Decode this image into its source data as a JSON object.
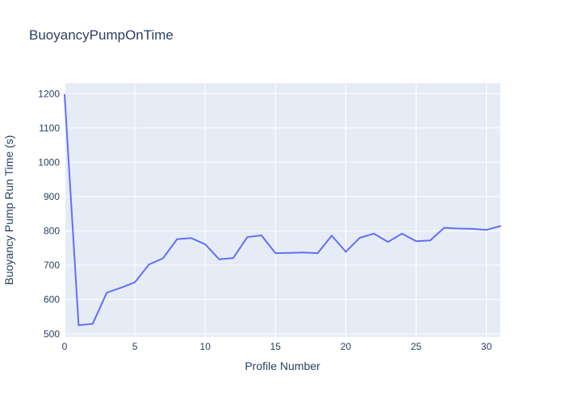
{
  "chart_data": {
    "type": "line",
    "title": "BuoyancyPumpOnTime",
    "xlabel": "Profile Number",
    "ylabel": "Buoyancy Pump Run Time (s)",
    "x": [
      0,
      1,
      2,
      3,
      4,
      5,
      6,
      7,
      8,
      9,
      10,
      11,
      12,
      13,
      14,
      15,
      16,
      17,
      18,
      19,
      20,
      21,
      22,
      23,
      24,
      25,
      26,
      27,
      28,
      29,
      30,
      31
    ],
    "y": [
      1197,
      525,
      529,
      620,
      634,
      650,
      702,
      720,
      776,
      779,
      761,
      717,
      721,
      782,
      787,
      735,
      736,
      737,
      735,
      786,
      739,
      780,
      792,
      768,
      792,
      770,
      772,
      809,
      807,
      806,
      803,
      814
    ],
    "xlim": [
      0,
      31
    ],
    "ylim": [
      491,
      1231
    ],
    "xticks": [
      0,
      5,
      10,
      15,
      20,
      25,
      30
    ],
    "yticks": [
      500,
      600,
      700,
      800,
      900,
      1000,
      1100,
      1200
    ],
    "grid": true,
    "legend": false,
    "line_color": "#636efa",
    "plot_bg": "#e5ecf6",
    "grid_color": "#ffffff",
    "text_color": "#2a3f5f"
  }
}
